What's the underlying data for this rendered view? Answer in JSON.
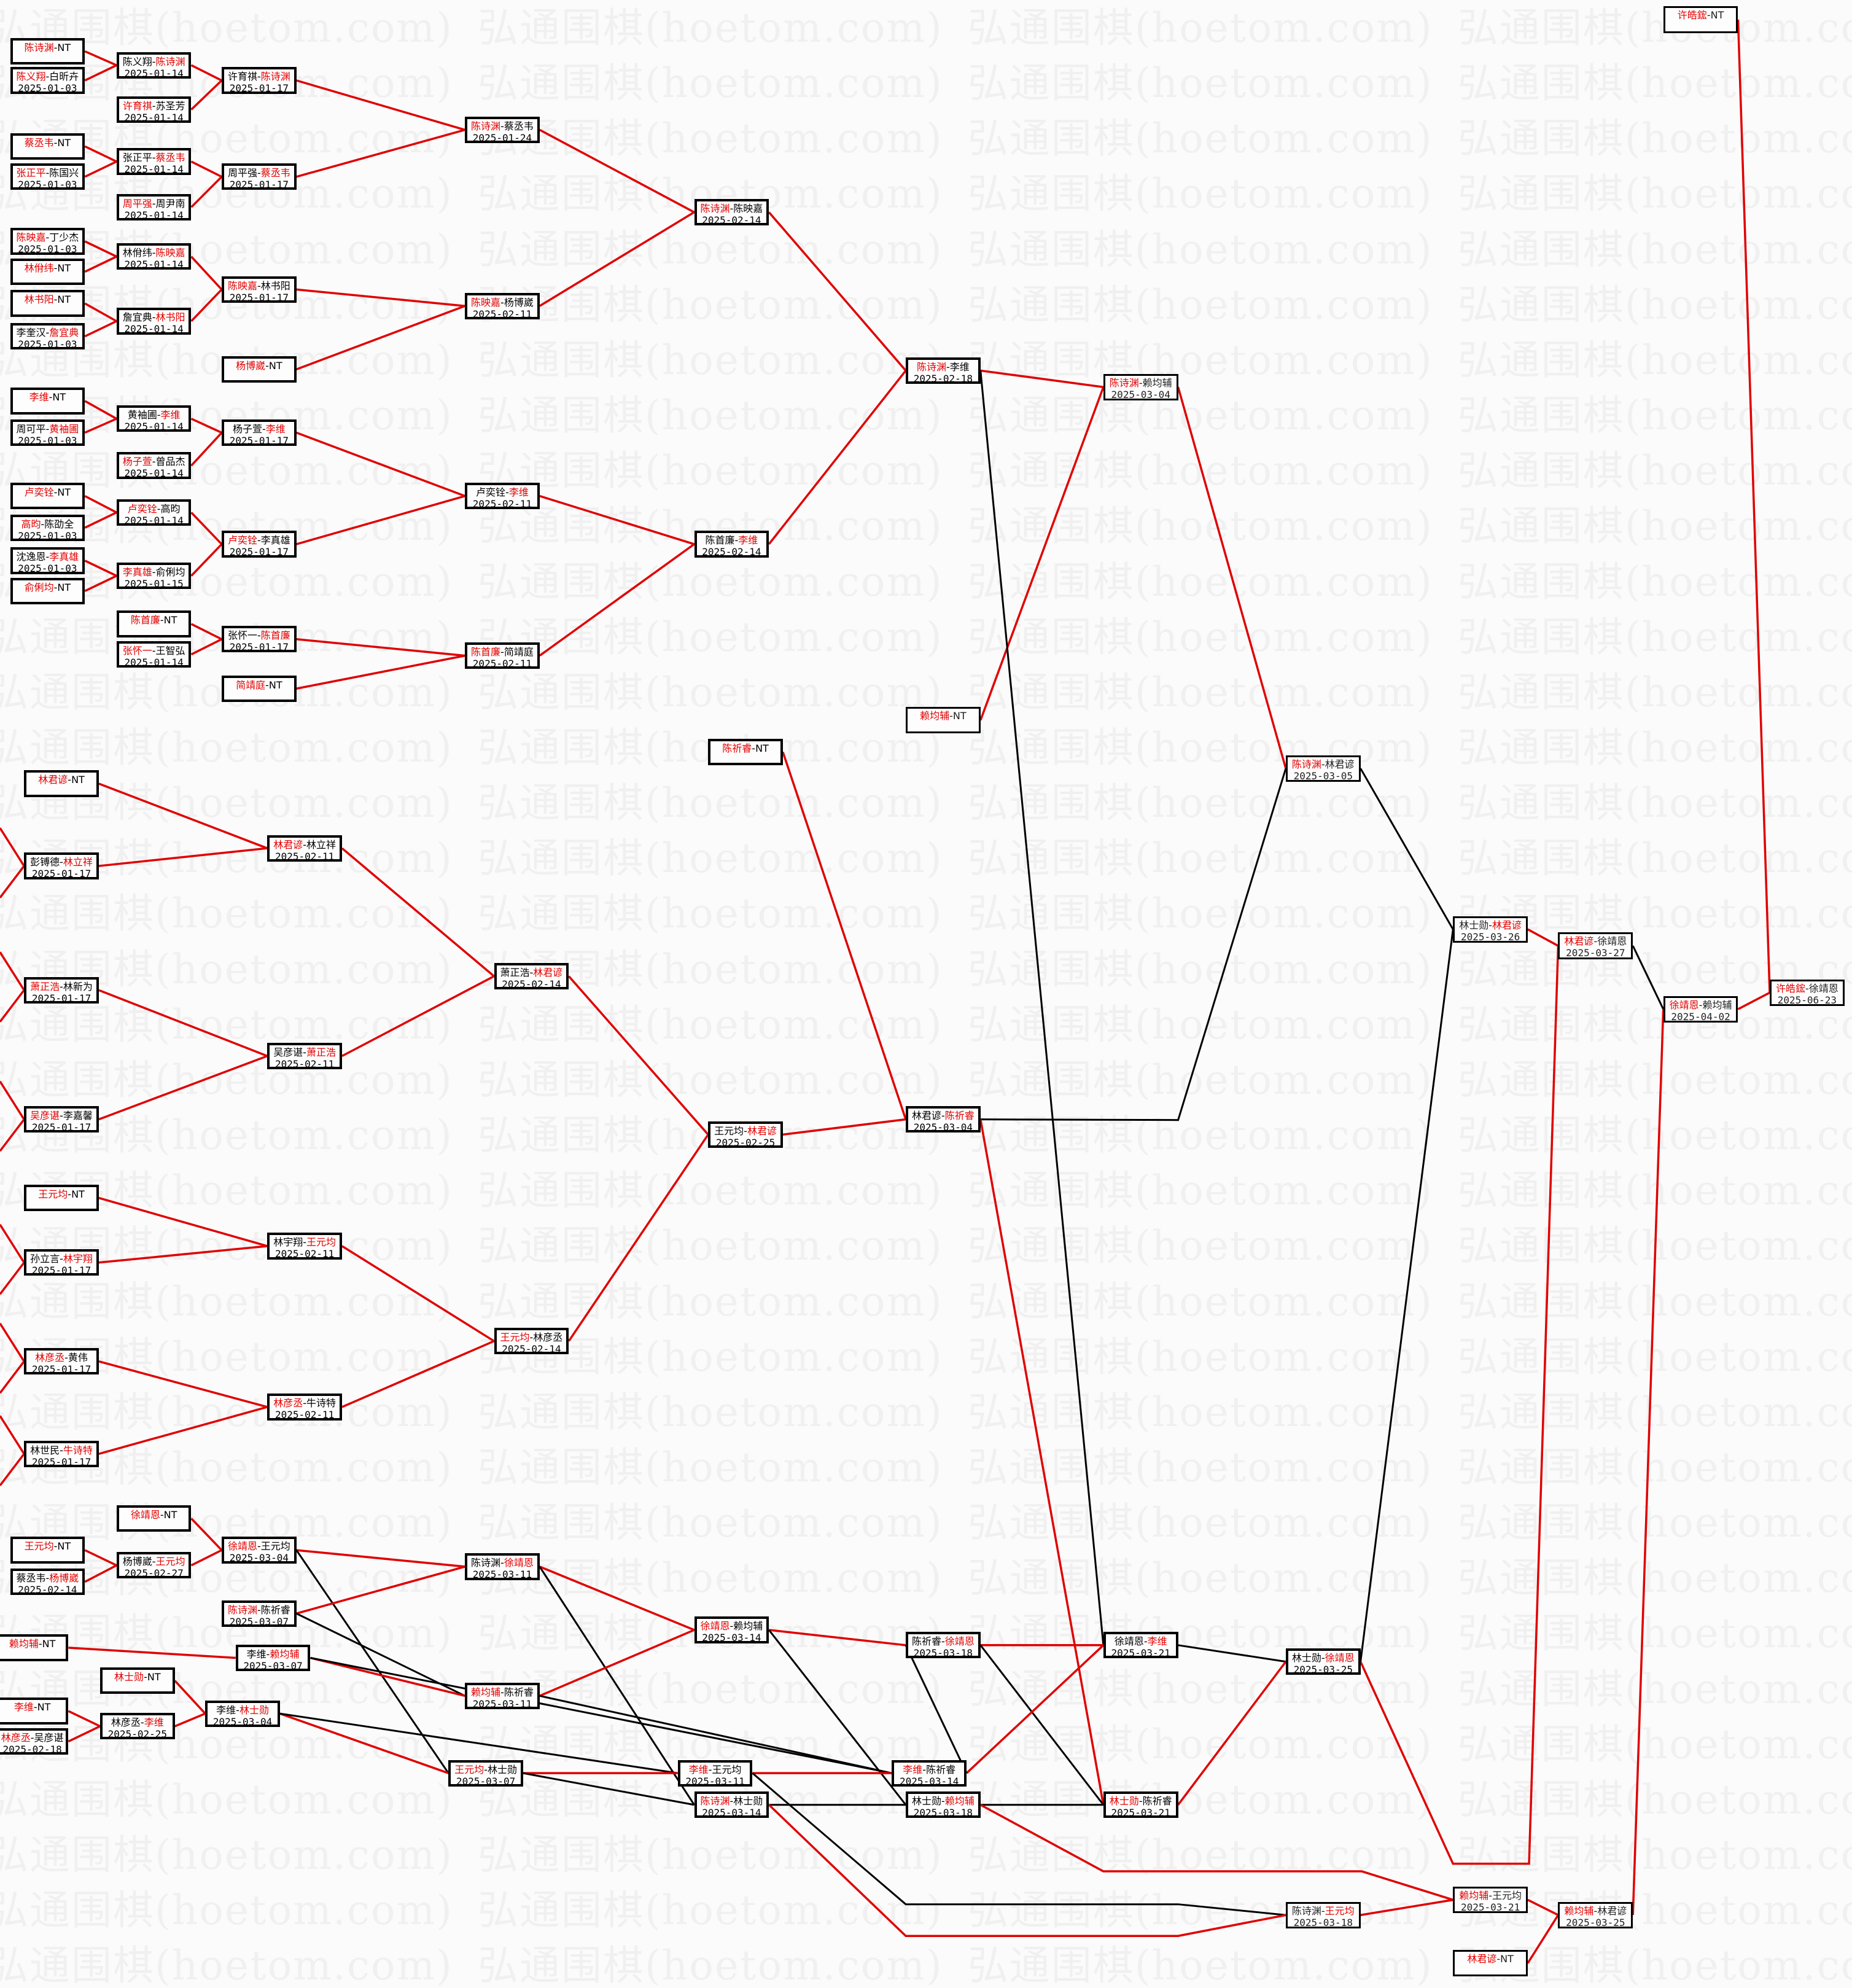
{
  "watermark": "弘通围棋(hoetom.com)",
  "colors": {
    "winner": "#e30000",
    "winner_path": "#e00000",
    "loser_path": "#000000",
    "box_border": "#000000"
  },
  "nodes": [
    {
      "p1": "陈诗渊",
      "p2": "NT",
      "winner": 0
    },
    {
      "p1": "陈义翔",
      "p2": "白昕卉",
      "winner": 0,
      "date": "2025-01-03"
    },
    {
      "p1": "陈义翔",
      "p2": "陈诗渊",
      "winner": 1,
      "date": "2025-01-14"
    },
    {
      "p1": "许育祺",
      "p2": "苏圣芳",
      "winner": 0,
      "date": "2025-01-14"
    },
    {
      "p1": "许育祺",
      "p2": "陈诗渊",
      "winner": 1,
      "date": "2025-01-17"
    },
    {
      "p1": "蔡丞韦",
      "p2": "NT",
      "winner": 0
    },
    {
      "p1": "张正平",
      "p2": "陈国兴",
      "winner": 0,
      "date": "2025-01-03"
    },
    {
      "p1": "张正平",
      "p2": "蔡丞韦",
      "winner": 1,
      "date": "2025-01-14"
    },
    {
      "p1": "周平强",
      "p2": "周尹南",
      "winner": 0,
      "date": "2025-01-14"
    },
    {
      "p1": "周平强",
      "p2": "蔡丞韦",
      "winner": 1,
      "date": "2025-01-17"
    },
    {
      "p1": "陈映嘉",
      "p2": "丁少杰",
      "winner": 0,
      "date": "2025-01-03"
    },
    {
      "p1": "林佾纬",
      "p2": "NT",
      "winner": 0
    },
    {
      "p1": "林佾纬",
      "p2": "陈映嘉",
      "winner": 1,
      "date": "2025-01-14"
    },
    {
      "p1": "林书阳",
      "p2": "NT",
      "winner": 0
    },
    {
      "p1": "李奎汉",
      "p2": "詹宜典",
      "winner": 1,
      "date": "2025-01-03"
    },
    {
      "p1": "詹宜典",
      "p2": "林书阳",
      "winner": 1,
      "date": "2025-01-14"
    },
    {
      "p1": "陈映嘉",
      "p2": "林书阳",
      "winner": 0,
      "date": "2025-01-17"
    },
    {
      "p1": "杨博崴",
      "p2": "NT",
      "winner": 0
    },
    {
      "p1": "陈诗渊",
      "p2": "蔡丞韦",
      "winner": 0,
      "date": "2025-01-24"
    },
    {
      "p1": "陈映嘉",
      "p2": "杨博崴",
      "winner": 0,
      "date": "2025-02-11"
    },
    {
      "p1": "陈诗渊",
      "p2": "陈映嘉",
      "winner": 0,
      "date": "2025-02-14"
    },
    {
      "p1": "李维",
      "p2": "NT",
      "winner": 0
    },
    {
      "p1": "周可平",
      "p2": "黄袖圃",
      "winner": 1,
      "date": "2025-01-03"
    },
    {
      "p1": "黄袖圃",
      "p2": "李维",
      "winner": 1,
      "date": "2025-01-14"
    },
    {
      "p1": "杨子萱",
      "p2": "曾品杰",
      "winner": 0,
      "date": "2025-01-14"
    },
    {
      "p1": "杨子萱",
      "p2": "李维",
      "winner": 1,
      "date": "2025-01-17"
    },
    {
      "p1": "卢奕铨",
      "p2": "NT",
      "winner": 0
    },
    {
      "p1": "高昀",
      "p2": "陈劭全",
      "winner": 0,
      "date": "2025-01-03"
    },
    {
      "p1": "卢奕铨",
      "p2": "高昀",
      "winner": 0,
      "date": "2025-01-14"
    },
    {
      "p1": "沈逸恩",
      "p2": "李真雄",
      "winner": 1,
      "date": "2025-01-03"
    },
    {
      "p1": "俞俐均",
      "p2": "NT",
      "winner": 0
    },
    {
      "p1": "李真雄",
      "p2": "俞俐均",
      "winner": 0,
      "date": "2025-01-15"
    },
    {
      "p1": "卢奕铨",
      "p2": "李真雄",
      "winner": 0,
      "date": "2025-01-17"
    },
    {
      "p1": "陈首廉",
      "p2": "NT",
      "winner": 0
    },
    {
      "p1": "张怀一",
      "p2": "王智弘",
      "winner": 0,
      "date": "2025-01-14"
    },
    {
      "p1": "张怀一",
      "p2": "陈首廉",
      "winner": 1,
      "date": "2025-01-17"
    },
    {
      "p1": "简靖庭",
      "p2": "NT",
      "winner": 0
    },
    {
      "p1": "卢奕铨",
      "p2": "李维",
      "winner": 1,
      "date": "2025-02-11"
    },
    {
      "p1": "陈首廉",
      "p2": "简靖庭",
      "winner": 0,
      "date": "2025-02-11"
    },
    {
      "p1": "陈首廉",
      "p2": "李维",
      "winner": 1,
      "date": "2025-02-14"
    },
    {
      "p1": "陈诗渊",
      "p2": "李维",
      "winner": 0,
      "date": "2025-02-18"
    },
    {
      "p1": "陈诗渊",
      "p2": "赖均辅",
      "winner": 0,
      "date": "2025-03-04"
    },
    {
      "p1": "赖均辅",
      "p2": "NT",
      "winner": 0
    },
    {
      "p1": "陈祈睿",
      "p2": "NT",
      "winner": 0
    },
    {
      "p1": "林君谚",
      "p2": "NT",
      "winner": 0
    },
    {
      "p1": "彭镈德",
      "p2": "林立祥",
      "winner": 1,
      "date": "2025-01-17"
    },
    {
      "p1": "林君谚",
      "p2": "林立祥",
      "winner": 0,
      "date": "2025-02-11"
    },
    {
      "p1": "萧正浩",
      "p2": "林新为",
      "winner": 0,
      "date": "2025-01-17"
    },
    {
      "p1": "吴彦谌",
      "p2": "李嘉馨",
      "winner": 0,
      "date": "2025-01-17"
    },
    {
      "p1": "吴彦谌",
      "p2": "萧正浩",
      "winner": 1,
      "date": "2025-02-11"
    },
    {
      "p1": "萧正浩",
      "p2": "林君谚",
      "winner": 1,
      "date": "2025-02-14"
    },
    {
      "p1": "王元均",
      "p2": "林君谚",
      "winner": 1,
      "date": "2025-02-25"
    },
    {
      "p1": "王元均",
      "p2": "NT",
      "winner": 0
    },
    {
      "p1": "孙立言",
      "p2": "林宇翔",
      "winner": 1,
      "date": "2025-01-17"
    },
    {
      "p1": "林宇翔",
      "p2": "王元均",
      "winner": 1,
      "date": "2025-02-11"
    },
    {
      "p1": "林彦丞",
      "p2": "黄伟",
      "winner": 0,
      "date": "2025-01-17"
    },
    {
      "p1": "林世民",
      "p2": "牛诗特",
      "winner": 1,
      "date": "2025-01-17"
    },
    {
      "p1": "林彦丞",
      "p2": "牛诗特",
      "winner": 0,
      "date": "2025-02-11"
    },
    {
      "p1": "王元均",
      "p2": "林彦丞",
      "winner": 0,
      "date": "2025-02-14"
    },
    {
      "p1": "林君谚",
      "p2": "陈祈睿",
      "winner": 1,
      "date": "2025-03-04"
    },
    {
      "p1": "陈诗渊",
      "p2": "林君谚",
      "winner": 0,
      "date": "2025-03-05"
    },
    {
      "p1": "林士勋",
      "p2": "林君谚",
      "winner": 1,
      "date": "2025-03-26"
    },
    {
      "p1": "林君谚",
      "p2": "徐靖恩",
      "winner": 0,
      "date": "2025-03-27"
    },
    {
      "p1": "徐靖恩",
      "p2": "赖均辅",
      "winner": 0,
      "date": "2025-04-02"
    },
    {
      "p1": "许皓鋐",
      "p2": "徐靖恩",
      "winner": 0,
      "date": "2025-06-23"
    },
    {
      "p1": "许皓鋐",
      "p2": "NT",
      "winner": 0
    },
    {
      "p1": "徐靖恩",
      "p2": "NT",
      "winner": 0
    },
    {
      "p1": "王元均",
      "p2": "NT",
      "winner": 0
    },
    {
      "p1": "杨博崴",
      "p2": "王元均",
      "winner": 1,
      "date": "2025-02-27"
    },
    {
      "p1": "蔡丞韦",
      "p2": "杨博崴",
      "winner": 1,
      "date": "2025-02-14"
    },
    {
      "p1": "徐靖恩",
      "p2": "王元均",
      "winner": 0,
      "date": "2025-03-04"
    },
    {
      "p1": "陈诗渊",
      "p2": "陈祈睿",
      "winner": 0,
      "date": "2025-03-07"
    },
    {
      "p1": "赖均辅",
      "p2": "NT",
      "winner": 0
    },
    {
      "p1": "林士勋",
      "p2": "NT",
      "winner": 0
    },
    {
      "p1": "李维",
      "p2": "NT",
      "winner": 0
    },
    {
      "p1": "林彦丞",
      "p2": "吴彦谌",
      "winner": 0,
      "date": "2025-02-18"
    },
    {
      "p1": "林彦丞",
      "p2": "李维",
      "winner": 1,
      "date": "2025-02-25"
    },
    {
      "p1": "李维",
      "p2": "林士勋",
      "winner": 1,
      "date": "2025-03-04"
    },
    {
      "p1": "李维",
      "p2": "赖均辅",
      "winner": 1,
      "date": "2025-03-07"
    },
    {
      "p1": "陈诗渊",
      "p2": "徐靖恩",
      "winner": 1,
      "date": "2025-03-11"
    },
    {
      "p1": "赖均辅",
      "p2": "陈祈睿",
      "winner": 0,
      "date": "2025-03-11"
    },
    {
      "p1": "王元均",
      "p2": "林士勋",
      "winner": 0,
      "date": "2025-03-07"
    },
    {
      "p1": "徐靖恩",
      "p2": "赖均辅",
      "winner": 0,
      "date": "2025-03-14"
    },
    {
      "p1": "李维",
      "p2": "王元均",
      "winner": 0,
      "date": "2025-03-11"
    },
    {
      "p1": "陈诗渊",
      "p2": "林士勋",
      "winner": 0,
      "date": "2025-03-14"
    },
    {
      "p1": "陈祈睿",
      "p2": "徐靖恩",
      "winner": 1,
      "date": "2025-03-18"
    },
    {
      "p1": "李维",
      "p2": "陈祈睿",
      "winner": 0,
      "date": "2025-03-14"
    },
    {
      "p1": "林士勋",
      "p2": "赖均辅",
      "winner": 1,
      "date": "2025-03-18"
    },
    {
      "p1": "徐靖恩",
      "p2": "李维",
      "winner": 1,
      "date": "2025-03-21"
    },
    {
      "p1": "林士勋",
      "p2": "陈祈睿",
      "winner": 0,
      "date": "2025-03-21"
    },
    {
      "p1": "林士勋",
      "p2": "徐靖恩",
      "winner": 1,
      "date": "2025-03-25"
    },
    {
      "p1": "陈诗渊",
      "p2": "王元均",
      "winner": 1,
      "date": "2025-03-18"
    },
    {
      "p1": "赖均辅",
      "p2": "王元均",
      "winner": 0,
      "date": "2025-03-21"
    },
    {
      "p1": "赖均辅",
      "p2": "林君谚",
      "winner": 0,
      "date": "2025-03-25"
    },
    {
      "p1": "林君谚",
      "p2": "NT",
      "winner": 0
    }
  ]
}
